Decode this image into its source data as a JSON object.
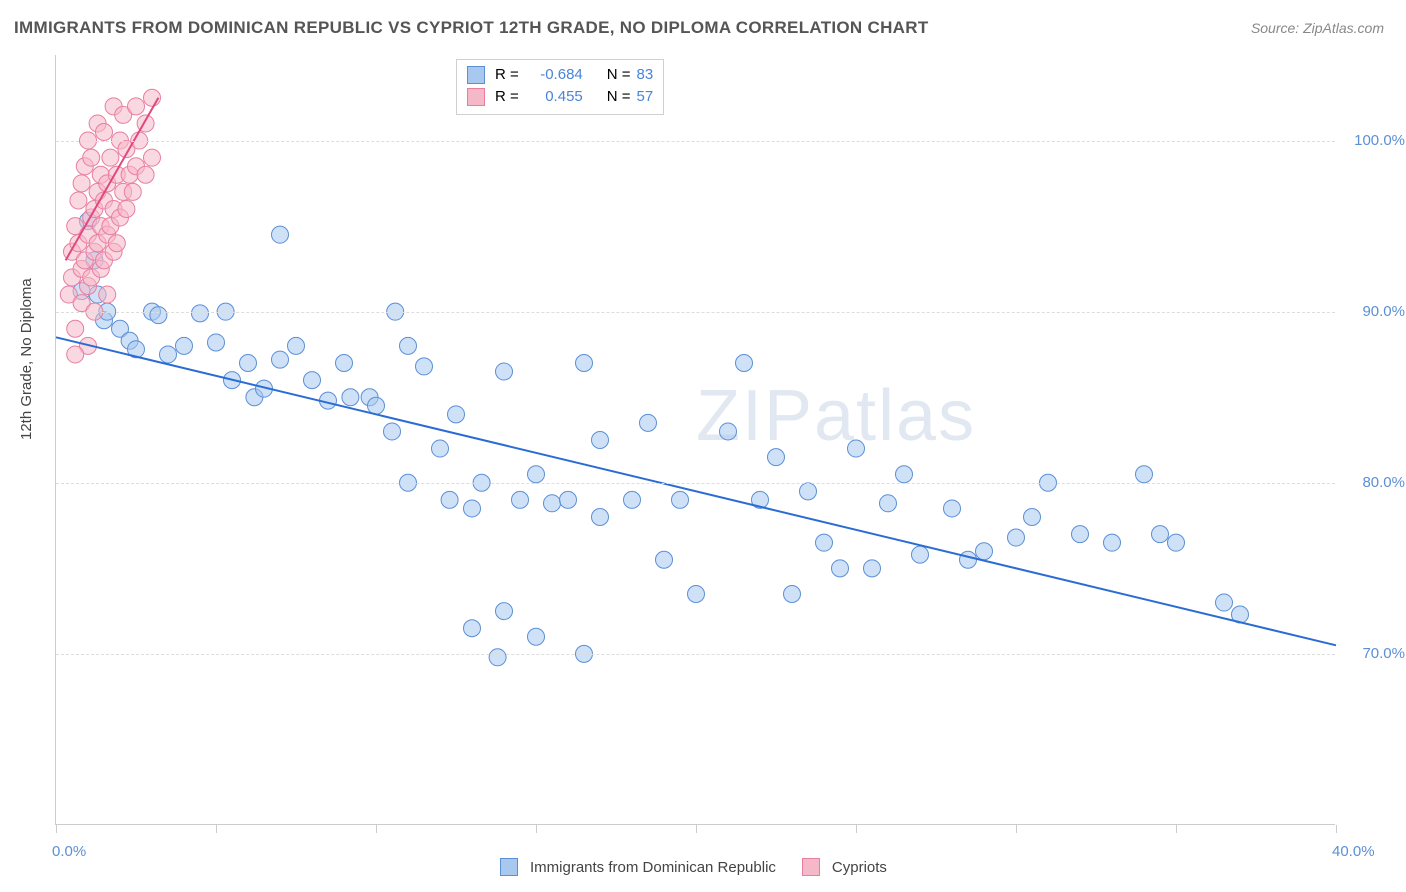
{
  "title": "IMMIGRANTS FROM DOMINICAN REPUBLIC VS CYPRIOT 12TH GRADE, NO DIPLOMA CORRELATION CHART",
  "source": "Source: ZipAtlas.com",
  "watermark": "ZIPatlas",
  "y_axis_label": "12th Grade, No Diploma",
  "chart": {
    "type": "scatter",
    "xlim": [
      0,
      40
    ],
    "ylim": [
      60,
      105
    ],
    "x_ticks": [
      0,
      5,
      10,
      15,
      20,
      25,
      30,
      35,
      40
    ],
    "x_tick_labels": {
      "0": "0.0%",
      "40": "40.0%"
    },
    "y_ticks": [
      70,
      80,
      90,
      100
    ],
    "y_tick_labels": {
      "70": "70.0%",
      "80": "80.0%",
      "90": "90.0%",
      "100": "100.0%"
    },
    "background_color": "#ffffff",
    "grid_color": "#dddddd",
    "axis_color": "#cccccc",
    "tick_label_color": "#5b8fd6",
    "marker_radius": 8.5,
    "marker_opacity": 0.55,
    "line_width": 2,
    "series": [
      {
        "name": "Immigrants from Dominican Republic",
        "fill_color": "#a8c8f0",
        "stroke_color": "#5b8fd6",
        "R": "-0.684",
        "N": "83",
        "trend": {
          "x1": 0,
          "y1": 88.5,
          "x2": 40,
          "y2": 70.5,
          "color": "#2b6cd4"
        },
        "points": [
          [
            0.8,
            91.2
          ],
          [
            1.0,
            95.3
          ],
          [
            1.2,
            93.0
          ],
          [
            1.3,
            91.0
          ],
          [
            1.5,
            89.5
          ],
          [
            1.6,
            90.0
          ],
          [
            2.0,
            89.0
          ],
          [
            2.3,
            88.3
          ],
          [
            2.5,
            87.8
          ],
          [
            3.0,
            90.0
          ],
          [
            3.2,
            89.8
          ],
          [
            3.5,
            87.5
          ],
          [
            4.0,
            88.0
          ],
          [
            4.5,
            89.9
          ],
          [
            5.0,
            88.2
          ],
          [
            5.3,
            90.0
          ],
          [
            5.5,
            86.0
          ],
          [
            6.0,
            87.0
          ],
          [
            6.2,
            85.0
          ],
          [
            6.5,
            85.5
          ],
          [
            7.0,
            94.5
          ],
          [
            7.0,
            87.2
          ],
          [
            7.5,
            88.0
          ],
          [
            8.0,
            86.0
          ],
          [
            8.5,
            84.8
          ],
          [
            9.0,
            87.0
          ],
          [
            9.2,
            85.0
          ],
          [
            9.8,
            85.0
          ],
          [
            10.0,
            84.5
          ],
          [
            10.5,
            83.0
          ],
          [
            10.6,
            90.0
          ],
          [
            11.0,
            80.0
          ],
          [
            11.0,
            88.0
          ],
          [
            11.5,
            86.8
          ],
          [
            12.0,
            82.0
          ],
          [
            12.3,
            79.0
          ],
          [
            12.5,
            84.0
          ],
          [
            13.0,
            78.5
          ],
          [
            13.0,
            71.5
          ],
          [
            13.3,
            80.0
          ],
          [
            13.8,
            69.8
          ],
          [
            14.0,
            86.5
          ],
          [
            14.0,
            72.5
          ],
          [
            14.5,
            79.0
          ],
          [
            15.0,
            80.5
          ],
          [
            15.0,
            71.0
          ],
          [
            15.5,
            78.8
          ],
          [
            16.0,
            79.0
          ],
          [
            16.5,
            87.0
          ],
          [
            16.5,
            70.0
          ],
          [
            17.0,
            82.5
          ],
          [
            17.0,
            78.0
          ],
          [
            18.0,
            79.0
          ],
          [
            18.5,
            83.5
          ],
          [
            19.0,
            75.5
          ],
          [
            19.5,
            79.0
          ],
          [
            20.0,
            73.5
          ],
          [
            21.0,
            83.0
          ],
          [
            21.5,
            87.0
          ],
          [
            22.0,
            79.0
          ],
          [
            22.5,
            81.5
          ],
          [
            23.0,
            73.5
          ],
          [
            23.5,
            79.5
          ],
          [
            24.0,
            76.5
          ],
          [
            24.5,
            75.0
          ],
          [
            25.0,
            82.0
          ],
          [
            25.5,
            75.0
          ],
          [
            26.0,
            78.8
          ],
          [
            26.5,
            80.5
          ],
          [
            27.0,
            75.8
          ],
          [
            28.0,
            78.5
          ],
          [
            28.5,
            75.5
          ],
          [
            29.0,
            76.0
          ],
          [
            30.0,
            76.8
          ],
          [
            30.5,
            78.0
          ],
          [
            31.0,
            80.0
          ],
          [
            32.0,
            77.0
          ],
          [
            33.0,
            76.5
          ],
          [
            34.0,
            80.5
          ],
          [
            34.5,
            77.0
          ],
          [
            35.0,
            76.5
          ],
          [
            36.5,
            73.0
          ],
          [
            37.0,
            72.3
          ]
        ]
      },
      {
        "name": "Cypriots",
        "fill_color": "#f5b8c8",
        "stroke_color": "#e87ea0",
        "R": "0.455",
        "N": "57",
        "trend": {
          "x1": 0.3,
          "y1": 93.0,
          "x2": 3.2,
          "y2": 102.5,
          "color": "#e04880"
        },
        "points": [
          [
            0.4,
            91.0
          ],
          [
            0.5,
            92.0
          ],
          [
            0.5,
            93.5
          ],
          [
            0.6,
            95.0
          ],
          [
            0.6,
            89.0
          ],
          [
            0.7,
            94.0
          ],
          [
            0.7,
            96.5
          ],
          [
            0.8,
            92.5
          ],
          [
            0.8,
            90.5
          ],
          [
            0.8,
            97.5
          ],
          [
            0.9,
            93.0
          ],
          [
            0.9,
            98.5
          ],
          [
            1.0,
            91.5
          ],
          [
            1.0,
            94.5
          ],
          [
            1.0,
            100.0
          ],
          [
            1.1,
            92.0
          ],
          [
            1.1,
            95.5
          ],
          [
            1.1,
            99.0
          ],
          [
            1.2,
            93.5
          ],
          [
            1.2,
            96.0
          ],
          [
            1.2,
            90.0
          ],
          [
            1.3,
            94.0
          ],
          [
            1.3,
            97.0
          ],
          [
            1.3,
            101.0
          ],
          [
            1.4,
            92.5
          ],
          [
            1.4,
            95.0
          ],
          [
            1.4,
            98.0
          ],
          [
            1.5,
            93.0
          ],
          [
            1.5,
            96.5
          ],
          [
            1.5,
            100.5
          ],
          [
            1.6,
            94.5
          ],
          [
            1.6,
            97.5
          ],
          [
            1.6,
            91.0
          ],
          [
            1.7,
            95.0
          ],
          [
            1.7,
            99.0
          ],
          [
            1.8,
            93.5
          ],
          [
            1.8,
            96.0
          ],
          [
            1.8,
            102.0
          ],
          [
            1.9,
            94.0
          ],
          [
            1.9,
            98.0
          ],
          [
            2.0,
            95.5
          ],
          [
            2.0,
            100.0
          ],
          [
            2.1,
            97.0
          ],
          [
            2.1,
            101.5
          ],
          [
            2.2,
            96.0
          ],
          [
            2.2,
            99.5
          ],
          [
            2.3,
            98.0
          ],
          [
            2.4,
            97.0
          ],
          [
            2.5,
            102.0
          ],
          [
            2.5,
            98.5
          ],
          [
            2.6,
            100.0
          ],
          [
            2.8,
            101.0
          ],
          [
            2.8,
            98.0
          ],
          [
            3.0,
            102.5
          ],
          [
            3.0,
            99.0
          ],
          [
            1.0,
            88.0
          ],
          [
            0.6,
            87.5
          ]
        ]
      }
    ]
  },
  "legend_top": {
    "R_label": "R =",
    "N_label": "N =",
    "value_color": "#4a84d8"
  },
  "legend_bottom": {
    "items": [
      "Immigrants from Dominican Republic",
      "Cypriots"
    ]
  }
}
